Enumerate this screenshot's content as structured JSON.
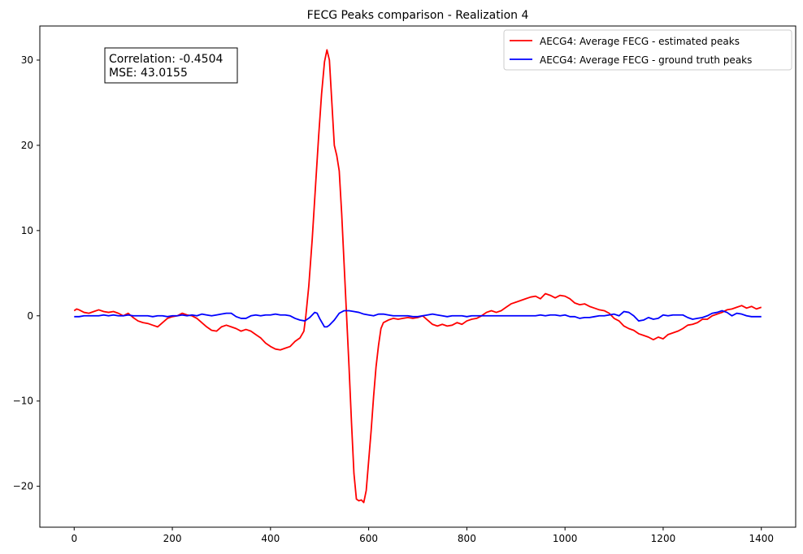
{
  "chart_data": {
    "type": "line",
    "title": "FECG Peaks comparison - Realization 4",
    "xlabel": "",
    "ylabel": "",
    "xlim": [
      -70,
      1470
    ],
    "ylim": [
      -24.8,
      34.0
    ],
    "xticks": [
      0,
      200,
      400,
      600,
      800,
      1000,
      1200,
      1400
    ],
    "yticks": [
      -20,
      -10,
      0,
      10,
      20,
      30
    ],
    "xtick_labels": [
      "0",
      "200",
      "400",
      "600",
      "800",
      "1000",
      "1200",
      "1400"
    ],
    "ytick_labels": [
      "−20",
      "−10",
      "0",
      "10",
      "20",
      "30"
    ],
    "grid": false,
    "legend_position": "top-right",
    "annotation": {
      "line1": "Correlation: -0.4504",
      "line2": "MSE: 43.0155"
    },
    "series": [
      {
        "name": "AECG4: Average FECG - estimated peaks",
        "color": "#ff0000",
        "points": [
          [
            0,
            0.6
          ],
          [
            5,
            0.8
          ],
          [
            10,
            0.7
          ],
          [
            20,
            0.4
          ],
          [
            30,
            0.3
          ],
          [
            40,
            0.5
          ],
          [
            50,
            0.7
          ],
          [
            60,
            0.5
          ],
          [
            70,
            0.4
          ],
          [
            80,
            0.5
          ],
          [
            90,
            0.3
          ],
          [
            100,
            0.0
          ],
          [
            110,
            0.3
          ],
          [
            120,
            -0.2
          ],
          [
            130,
            -0.6
          ],
          [
            140,
            -0.8
          ],
          [
            150,
            -0.9
          ],
          [
            160,
            -1.1
          ],
          [
            170,
            -1.3
          ],
          [
            180,
            -0.8
          ],
          [
            190,
            -0.3
          ],
          [
            200,
            -0.1
          ],
          [
            210,
            0.0
          ],
          [
            220,
            0.3
          ],
          [
            230,
            0.1
          ],
          [
            240,
            0.0
          ],
          [
            250,
            -0.3
          ],
          [
            260,
            -0.8
          ],
          [
            270,
            -1.3
          ],
          [
            280,
            -1.7
          ],
          [
            290,
            -1.8
          ],
          [
            300,
            -1.3
          ],
          [
            310,
            -1.1
          ],
          [
            320,
            -1.3
          ],
          [
            330,
            -1.5
          ],
          [
            340,
            -1.8
          ],
          [
            350,
            -1.6
          ],
          [
            360,
            -1.8
          ],
          [
            370,
            -2.2
          ],
          [
            380,
            -2.6
          ],
          [
            390,
            -3.2
          ],
          [
            400,
            -3.6
          ],
          [
            410,
            -3.9
          ],
          [
            420,
            -4.0
          ],
          [
            430,
            -3.8
          ],
          [
            440,
            -3.6
          ],
          [
            450,
            -3.0
          ],
          [
            460,
            -2.6
          ],
          [
            468,
            -1.8
          ],
          [
            472,
            0.0
          ],
          [
            478,
            3.5
          ],
          [
            485,
            9.0
          ],
          [
            492,
            15.5
          ],
          [
            498,
            21.0
          ],
          [
            504,
            26.0
          ],
          [
            510,
            29.8
          ],
          [
            515,
            31.2
          ],
          [
            520,
            30.0
          ],
          [
            525,
            25.0
          ],
          [
            530,
            20.0
          ],
          [
            535,
            18.8
          ],
          [
            540,
            17.0
          ],
          [
            545,
            12.0
          ],
          [
            550,
            6.0
          ],
          [
            555,
            0.0
          ],
          [
            560,
            -6.0
          ],
          [
            565,
            -12.5
          ],
          [
            570,
            -18.5
          ],
          [
            575,
            -21.5
          ],
          [
            580,
            -21.7
          ],
          [
            585,
            -21.6
          ],
          [
            590,
            -21.9
          ],
          [
            595,
            -20.5
          ],
          [
            600,
            -17.0
          ],
          [
            605,
            -13.5
          ],
          [
            610,
            -9.5
          ],
          [
            615,
            -6.0
          ],
          [
            620,
            -3.5
          ],
          [
            625,
            -1.5
          ],
          [
            630,
            -0.8
          ],
          [
            640,
            -0.5
          ],
          [
            650,
            -0.3
          ],
          [
            660,
            -0.4
          ],
          [
            670,
            -0.3
          ],
          [
            680,
            -0.2
          ],
          [
            690,
            -0.3
          ],
          [
            700,
            -0.2
          ],
          [
            710,
            0.0
          ],
          [
            720,
            -0.5
          ],
          [
            730,
            -1.0
          ],
          [
            740,
            -1.2
          ],
          [
            750,
            -1.0
          ],
          [
            760,
            -1.2
          ],
          [
            770,
            -1.1
          ],
          [
            780,
            -0.8
          ],
          [
            790,
            -1.0
          ],
          [
            800,
            -0.6
          ],
          [
            810,
            -0.4
          ],
          [
            820,
            -0.3
          ],
          [
            830,
            0.0
          ],
          [
            840,
            0.4
          ],
          [
            850,
            0.6
          ],
          [
            860,
            0.4
          ],
          [
            870,
            0.6
          ],
          [
            880,
            1.0
          ],
          [
            890,
            1.4
          ],
          [
            900,
            1.6
          ],
          [
            910,
            1.8
          ],
          [
            920,
            2.0
          ],
          [
            930,
            2.2
          ],
          [
            940,
            2.3
          ],
          [
            950,
            2.0
          ],
          [
            960,
            2.6
          ],
          [
            970,
            2.4
          ],
          [
            980,
            2.1
          ],
          [
            990,
            2.4
          ],
          [
            1000,
            2.3
          ],
          [
            1010,
            2.0
          ],
          [
            1020,
            1.5
          ],
          [
            1030,
            1.3
          ],
          [
            1040,
            1.4
          ],
          [
            1050,
            1.1
          ],
          [
            1060,
            0.9
          ],
          [
            1070,
            0.7
          ],
          [
            1080,
            0.6
          ],
          [
            1090,
            0.3
          ],
          [
            1100,
            -0.3
          ],
          [
            1110,
            -0.6
          ],
          [
            1120,
            -1.2
          ],
          [
            1130,
            -1.5
          ],
          [
            1140,
            -1.7
          ],
          [
            1150,
            -2.1
          ],
          [
            1160,
            -2.3
          ],
          [
            1170,
            -2.5
          ],
          [
            1180,
            -2.8
          ],
          [
            1190,
            -2.5
          ],
          [
            1200,
            -2.7
          ],
          [
            1210,
            -2.2
          ],
          [
            1220,
            -2.0
          ],
          [
            1230,
            -1.8
          ],
          [
            1240,
            -1.5
          ],
          [
            1250,
            -1.1
          ],
          [
            1260,
            -1.0
          ],
          [
            1270,
            -0.8
          ],
          [
            1280,
            -0.4
          ],
          [
            1290,
            -0.4
          ],
          [
            1300,
            0.0
          ],
          [
            1310,
            0.2
          ],
          [
            1320,
            0.4
          ],
          [
            1330,
            0.7
          ],
          [
            1340,
            0.8
          ],
          [
            1350,
            1.0
          ],
          [
            1360,
            1.2
          ],
          [
            1370,
            0.9
          ],
          [
            1380,
            1.1
          ],
          [
            1390,
            0.8
          ],
          [
            1400,
            1.0
          ]
        ]
      },
      {
        "name": "AECG4: Average FECG - ground truth peaks",
        "color": "#0000ff",
        "points": [
          [
            0,
            -0.1
          ],
          [
            10,
            -0.1
          ],
          [
            20,
            0.0
          ],
          [
            30,
            0.0
          ],
          [
            40,
            0.0
          ],
          [
            50,
            0.0
          ],
          [
            60,
            0.1
          ],
          [
            70,
            0.0
          ],
          [
            80,
            0.1
          ],
          [
            90,
            0.0
          ],
          [
            100,
            0.0
          ],
          [
            110,
            0.1
          ],
          [
            120,
            0.0
          ],
          [
            130,
            0.0
          ],
          [
            140,
            0.0
          ],
          [
            150,
            0.0
          ],
          [
            160,
            -0.1
          ],
          [
            170,
            0.0
          ],
          [
            180,
            0.0
          ],
          [
            190,
            -0.1
          ],
          [
            200,
            0.0
          ],
          [
            210,
            0.0
          ],
          [
            220,
            0.1
          ],
          [
            230,
            0.0
          ],
          [
            240,
            0.1
          ],
          [
            250,
            0.0
          ],
          [
            260,
            0.2
          ],
          [
            270,
            0.1
          ],
          [
            280,
            0.0
          ],
          [
            290,
            0.1
          ],
          [
            300,
            0.2
          ],
          [
            310,
            0.3
          ],
          [
            320,
            0.3
          ],
          [
            330,
            -0.1
          ],
          [
            340,
            -0.3
          ],
          [
            350,
            -0.3
          ],
          [
            360,
            0.0
          ],
          [
            370,
            0.1
          ],
          [
            380,
            0.0
          ],
          [
            390,
            0.1
          ],
          [
            400,
            0.1
          ],
          [
            410,
            0.2
          ],
          [
            420,
            0.1
          ],
          [
            430,
            0.1
          ],
          [
            440,
            0.0
          ],
          [
            450,
            -0.3
          ],
          [
            460,
            -0.5
          ],
          [
            470,
            -0.6
          ],
          [
            480,
            -0.2
          ],
          [
            490,
            0.4
          ],
          [
            495,
            0.3
          ],
          [
            500,
            -0.3
          ],
          [
            505,
            -0.8
          ],
          [
            510,
            -1.3
          ],
          [
            515,
            -1.3
          ],
          [
            520,
            -1.1
          ],
          [
            530,
            -0.5
          ],
          [
            540,
            0.3
          ],
          [
            550,
            0.6
          ],
          [
            560,
            0.6
          ],
          [
            570,
            0.5
          ],
          [
            580,
            0.4
          ],
          [
            590,
            0.2
          ],
          [
            600,
            0.1
          ],
          [
            610,
            0.0
          ],
          [
            620,
            0.2
          ],
          [
            630,
            0.2
          ],
          [
            640,
            0.1
          ],
          [
            650,
            0.0
          ],
          [
            660,
            0.0
          ],
          [
            670,
            0.0
          ],
          [
            680,
            0.0
          ],
          [
            690,
            -0.1
          ],
          [
            700,
            -0.1
          ],
          [
            710,
            0.0
          ],
          [
            720,
            0.1
          ],
          [
            730,
            0.2
          ],
          [
            740,
            0.1
          ],
          [
            750,
            0.0
          ],
          [
            760,
            -0.1
          ],
          [
            770,
            0.0
          ],
          [
            780,
            0.0
          ],
          [
            790,
            0.0
          ],
          [
            800,
            -0.1
          ],
          [
            810,
            0.0
          ],
          [
            820,
            0.0
          ],
          [
            830,
            0.0
          ],
          [
            840,
            0.0
          ],
          [
            850,
            0.0
          ],
          [
            860,
            0.0
          ],
          [
            870,
            0.0
          ],
          [
            880,
            0.0
          ],
          [
            890,
            0.0
          ],
          [
            900,
            0.0
          ],
          [
            910,
            0.0
          ],
          [
            920,
            0.0
          ],
          [
            930,
            0.0
          ],
          [
            940,
            0.0
          ],
          [
            950,
            0.1
          ],
          [
            960,
            0.0
          ],
          [
            970,
            0.1
          ],
          [
            980,
            0.1
          ],
          [
            990,
            0.0
          ],
          [
            1000,
            0.1
          ],
          [
            1010,
            -0.1
          ],
          [
            1020,
            -0.1
          ],
          [
            1030,
            -0.3
          ],
          [
            1040,
            -0.2
          ],
          [
            1050,
            -0.2
          ],
          [
            1060,
            -0.1
          ],
          [
            1070,
            0.0
          ],
          [
            1080,
            0.0
          ],
          [
            1090,
            0.1
          ],
          [
            1100,
            0.2
          ],
          [
            1110,
            0.0
          ],
          [
            1120,
            0.5
          ],
          [
            1130,
            0.4
          ],
          [
            1140,
            0.0
          ],
          [
            1150,
            -0.6
          ],
          [
            1160,
            -0.5
          ],
          [
            1170,
            -0.2
          ],
          [
            1180,
            -0.4
          ],
          [
            1190,
            -0.3
          ],
          [
            1200,
            0.1
          ],
          [
            1210,
            0.0
          ],
          [
            1220,
            0.1
          ],
          [
            1230,
            0.1
          ],
          [
            1240,
            0.1
          ],
          [
            1250,
            -0.2
          ],
          [
            1260,
            -0.4
          ],
          [
            1270,
            -0.3
          ],
          [
            1280,
            -0.2
          ],
          [
            1290,
            0.0
          ],
          [
            1300,
            0.3
          ],
          [
            1310,
            0.4
          ],
          [
            1320,
            0.6
          ],
          [
            1330,
            0.4
          ],
          [
            1340,
            0.0
          ],
          [
            1350,
            0.3
          ],
          [
            1360,
            0.2
          ],
          [
            1370,
            0.0
          ],
          [
            1380,
            -0.1
          ],
          [
            1390,
            -0.1
          ],
          [
            1400,
            -0.1
          ]
        ]
      }
    ]
  }
}
